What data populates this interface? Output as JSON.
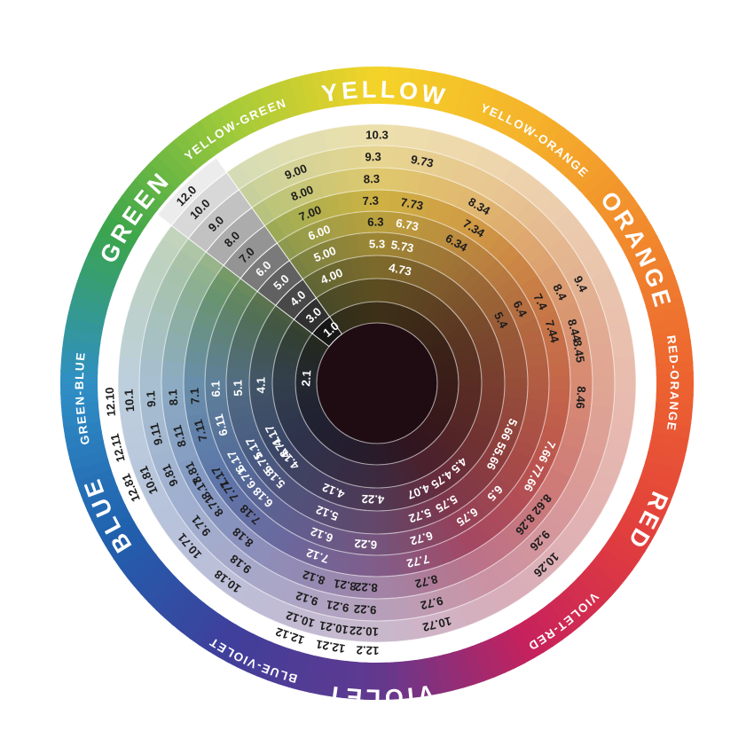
{
  "wheel": {
    "outer_ring": {
      "major_labels": [
        {
          "text": "YELLOW",
          "angle": 2,
          "radius": 322
        },
        {
          "text": "ORANGE",
          "angle": 63,
          "radius": 325
        },
        {
          "text": "RED",
          "angle": 117,
          "radius": 334
        },
        {
          "text": "VIOLET",
          "angle": 180,
          "radius": 345
        },
        {
          "text": "BLUE",
          "angle": -116,
          "radius": 331
        },
        {
          "text": "GREEN",
          "angle": -55,
          "radius": 324
        }
      ],
      "minor_labels": [
        {
          "text": "YELLOW-ORANGE",
          "angle": 33,
          "radius": 328
        },
        {
          "text": "RED-ORANGE",
          "angle": 90,
          "radius": 331
        },
        {
          "text": "VIOLET-RED",
          "angle": 142,
          "radius": 339
        },
        {
          "text": "BLUE-VIOLET",
          "angle": -156,
          "radius": 341
        },
        {
          "text": "GREEN-BLUE",
          "angle": -93,
          "radius": 331
        },
        {
          "text": "YELLOW-GREEN",
          "angle": -29,
          "radius": 328
        }
      ]
    },
    "gray_wedge": {
      "labels": [
        {
          "text": "12.0",
          "level": 12,
          "angle": -45.5
        },
        {
          "text": "10.0",
          "level": 10,
          "angle": -45.5
        },
        {
          "text": "9.0",
          "level": 9,
          "angle": -45.3
        },
        {
          "text": "8.0",
          "level": 8,
          "angle": -45.2
        },
        {
          "text": "7.0",
          "level": 7,
          "angle": -45.5
        },
        {
          "text": "6.0",
          "level": 6,
          "angle": -44.8,
          "light": true
        },
        {
          "text": "5.0",
          "level": 5,
          "angle": -43.5,
          "light": true
        },
        {
          "text": "4.0",
          "level": 4,
          "angle": -43,
          "light": true
        },
        {
          "text": "3.0",
          "level": 3,
          "angle": -43,
          "light": true
        },
        {
          "text": "1.0",
          "level": 1,
          "angle": -40.5,
          "light": true
        }
      ]
    },
    "number_labels": [
      {
        "text": "10.3",
        "level": 10,
        "angle": 0
      },
      {
        "text": "9.3",
        "level": 9,
        "angle": -1
      },
      {
        "text": "8.3",
        "level": 8,
        "angle": -1.5
      },
      {
        "text": "7.3",
        "level": 7,
        "angle": -2
      },
      {
        "text": "6.3",
        "level": 6,
        "angle": -0.5
      },
      {
        "text": "5.3",
        "level": 5,
        "angle": 0,
        "light": true
      },
      {
        "text": "9.00",
        "level": 9,
        "angle": -21
      },
      {
        "text": "8.00",
        "level": 8,
        "angle": -21.5
      },
      {
        "text": "7.00",
        "level": 7,
        "angle": -21.5
      },
      {
        "text": "6.00",
        "level": 6,
        "angle": -21,
        "light": true
      },
      {
        "text": "5.00",
        "level": 5,
        "angle": -22,
        "light": true
      },
      {
        "text": "4.00",
        "level": 4,
        "angle": -23,
        "light": true
      },
      {
        "text": "9.73",
        "level": 9,
        "angle": 11.5
      },
      {
        "text": "7.73",
        "level": 7,
        "angle": 11
      },
      {
        "text": "6.73",
        "level": 6,
        "angle": 10.8,
        "light": true
      },
      {
        "text": "5.73",
        "level": 5,
        "angle": 10.5,
        "light": true
      },
      {
        "text": "4.73",
        "level": 4,
        "angle": 11.5,
        "light": true
      },
      {
        "text": "8.34",
        "level": 8,
        "angle": 30
      },
      {
        "text": "7.34",
        "level": 7,
        "angle": 32
      },
      {
        "text": "6.34",
        "level": 6,
        "angle": 29.5
      },
      {
        "text": "9.4",
        "level": 9,
        "angle": 64
      },
      {
        "text": "8.4",
        "level": 8,
        "angle": 63.5
      },
      {
        "text": "7.4",
        "level": 7,
        "angle": 63.5
      },
      {
        "text": "6.4",
        "level": 6,
        "angle": 62.5
      },
      {
        "text": "5.4",
        "level": 5,
        "angle": 63
      },
      {
        "text": "8.44",
        "level": 8,
        "angle": 75
      },
      {
        "text": "7.44",
        "level": 7,
        "angle": 73.5
      },
      {
        "text": "8.45",
        "level": 8,
        "angle": 81
      },
      {
        "text": "8.46",
        "level": 8,
        "angle": 94
      },
      {
        "text": "7.66 77.66",
        "level": 7,
        "angle": 117,
        "light": true
      },
      {
        "text": "5.66 55.66",
        "level": 5,
        "angle": 116,
        "light": true
      },
      {
        "text": "8.62 8.26",
        "level": 8,
        "angle": 130
      },
      {
        "text": "9.26",
        "level": 9,
        "angle": 134
      },
      {
        "text": "10.26",
        "level": 10,
        "angle": 137
      },
      {
        "text": "6.5",
        "level": 6,
        "angle": 133,
        "light": true
      },
      {
        "text": "4.5",
        "level": 4,
        "angle": 135,
        "light": true
      },
      {
        "text": "6.75",
        "level": 6,
        "angle": 146,
        "light": true
      },
      {
        "text": "5.75",
        "level": 5,
        "angle": 150,
        "light": true
      },
      {
        "text": "4.75",
        "level": 4,
        "angle": 146,
        "light": true
      },
      {
        "text": "4.07",
        "level": 4,
        "angle": 159,
        "light": true
      },
      {
        "text": "10.72",
        "level": 10,
        "angle": 166
      },
      {
        "text": "9.72",
        "level": 9,
        "angle": 166
      },
      {
        "text": "8.72",
        "level": 8,
        "angle": 166
      },
      {
        "text": "7.72",
        "level": 7,
        "angle": 167,
        "light": true
      },
      {
        "text": "6.72",
        "level": 6,
        "angle": 164,
        "light": true
      },
      {
        "text": "5.72",
        "level": 5,
        "angle": 162,
        "light": true
      },
      {
        "text": "12.2",
        "level": 12,
        "angle": -178
      },
      {
        "text": "10.22",
        "level": 10,
        "angle": -177
      },
      {
        "text": "9.22",
        "level": 9,
        "angle": -177
      },
      {
        "text": "8.22",
        "level": 8,
        "angle": -177
      },
      {
        "text": "6.22",
        "level": 6,
        "angle": -176,
        "light": true
      },
      {
        "text": "4.22",
        "level": 4,
        "angle": -178,
        "light": true
      },
      {
        "text": "12.21",
        "level": 12,
        "angle": -170
      },
      {
        "text": "10.21",
        "level": 10,
        "angle": -170
      },
      {
        "text": "9.21",
        "level": 9,
        "angle": -170
      },
      {
        "text": "8.21",
        "level": 8,
        "angle": -171
      },
      {
        "text": "12.12",
        "level": 12,
        "angle": -161
      },
      {
        "text": "10.12",
        "level": 10,
        "angle": -162
      },
      {
        "text": "9.12",
        "level": 9,
        "angle": -162
      },
      {
        "text": "8.12",
        "level": 8,
        "angle": -162
      },
      {
        "text": "7.12",
        "level": 7,
        "angle": -161,
        "light": true
      },
      {
        "text": "6.12",
        "level": 6,
        "angle": -160,
        "light": true
      },
      {
        "text": "5.12",
        "level": 5,
        "angle": -159,
        "light": true
      },
      {
        "text": "4.12",
        "level": 4,
        "angle": -158,
        "light": true
      },
      {
        "text": "10.18",
        "level": 10,
        "angle": -143
      },
      {
        "text": "9.18",
        "level": 9,
        "angle": -143
      },
      {
        "text": "8.18",
        "level": 8,
        "angle": -139
      },
      {
        "text": "7.18",
        "level": 7,
        "angle": -136
      },
      {
        "text": "6.18",
        "level": 6,
        "angle": -135,
        "light": true
      },
      {
        "text": "5.18",
        "level": 5,
        "angle": -133,
        "light": true
      },
      {
        "text": "4.18",
        "level": 4,
        "angle": -131,
        "light": true
      },
      {
        "text": "10.71",
        "level": 10,
        "angle": -131
      },
      {
        "text": "9.71",
        "level": 9,
        "angle": -129
      },
      {
        "text": "8.71",
        "level": 8,
        "angle": -127
      },
      {
        "text": "7.71",
        "level": 7,
        "angle": -126
      },
      {
        "text": "6.71",
        "level": 6,
        "angle": -126,
        "light": true
      },
      {
        "text": "5.71",
        "level": 5,
        "angle": -125,
        "light": true
      },
      {
        "text": "4.71",
        "level": 4,
        "angle": -124,
        "light": true
      },
      {
        "text": "8.17",
        "level": 8,
        "angle": -121
      },
      {
        "text": "7.17",
        "level": 7,
        "angle": -121
      },
      {
        "text": "6.17",
        "level": 6,
        "angle": -119,
        "light": true
      },
      {
        "text": "5.17",
        "level": 5,
        "angle": -118,
        "light": true
      },
      {
        "text": "4.17",
        "level": 4,
        "angle": -117,
        "light": true
      },
      {
        "text": "12.81",
        "level": 12,
        "angle": -113
      },
      {
        "text": "10.81",
        "level": 10,
        "angle": -113
      },
      {
        "text": "9.81",
        "level": 9,
        "angle": -114
      },
      {
        "text": "8.81",
        "level": 8,
        "angle": -116
      },
      {
        "text": "12.11",
        "level": 12,
        "angle": -104
      },
      {
        "text": "9.11",
        "level": 9,
        "angle": -103
      },
      {
        "text": "8.11",
        "level": 8,
        "angle": -105
      },
      {
        "text": "7.11",
        "level": 7,
        "angle": -105
      },
      {
        "text": "6.11",
        "level": 6,
        "angle": -105,
        "light": true
      },
      {
        "text": "12.10",
        "level": 12,
        "angle": -94
      },
      {
        "text": "10.1",
        "level": 10,
        "angle": -94
      },
      {
        "text": "9.1",
        "level": 9,
        "angle": -94
      },
      {
        "text": "8.1",
        "level": 8,
        "angle": -94
      },
      {
        "text": "7.1",
        "level": 7,
        "angle": -94
      },
      {
        "text": "6.1",
        "level": 6,
        "angle": -92,
        "light": true
      },
      {
        "text": "5.1",
        "level": 5,
        "angle": -92,
        "light": true
      },
      {
        "text": "4.1",
        "level": 4,
        "angle": -91,
        "light": true
      },
      {
        "text": "2.1",
        "level": 2,
        "angle": -86,
        "light": true
      }
    ]
  },
  "palette": {
    "annulus_stops": [
      "#f4d328",
      "#f5b32b",
      "#f18a2d",
      "#ec6230",
      "#e23f3d",
      "#c6215c",
      "#61398f",
      "#3f3f9b",
      "#2060ae",
      "#2f8fc5",
      "#3ba54c",
      "#9fca3a"
    ],
    "ring_hues": [
      "#d6b945",
      "#d9a148",
      "#d08148",
      "#cc6a4c",
      "#c05552",
      "#a94a66",
      "#85618f",
      "#6f6ca4",
      "#5f7bb0",
      "#6d94b2",
      "#6d9a70",
      "#aab456"
    ],
    "wedge_grays_inner_to_outer": [
      "#161616",
      "#303030",
      "#484848",
      "#616161",
      "#7a7a7a",
      "#949494",
      "#acacac",
      "#c2c2c2",
      "#d8d8d8",
      "#ececec"
    ],
    "center_color": "#1f0c12",
    "separator_color": "rgba(255,255,255,0.55)",
    "text_dark": "#1d1d1d",
    "text_light": "#ffffff"
  }
}
